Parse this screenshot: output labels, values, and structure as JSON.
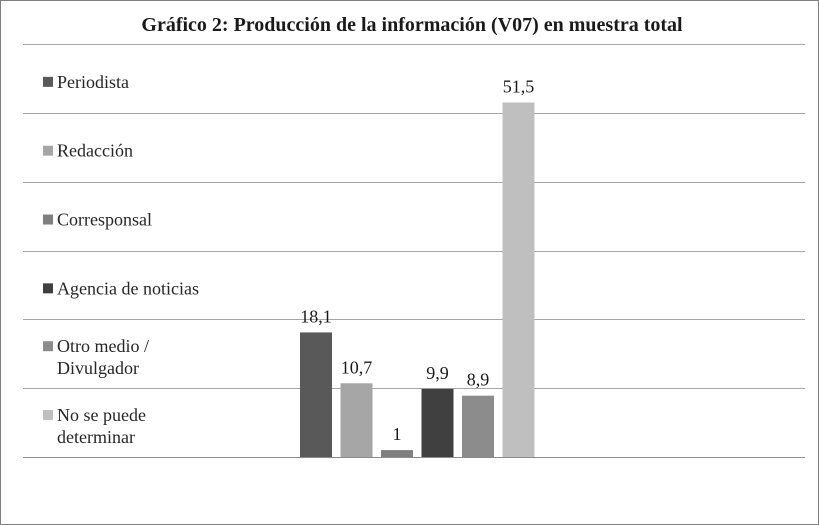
{
  "chart_data": {
    "type": "bar",
    "title": "Gráfico 2: Producción de la información (V07) en muestra total",
    "xlabel": "",
    "ylabel": "",
    "ylim": [
      0,
      60
    ],
    "grid": true,
    "legend_position": "left",
    "categories": [
      "Periodista",
      "Redacción",
      "Corresponsal",
      "Agencia de noticias",
      "Otro medio / Divulgador",
      "No se puede determinar"
    ],
    "series": [
      {
        "name": "Periodista",
        "value": 18.1,
        "label": "18,1",
        "color": "#595959"
      },
      {
        "name": "Redacción",
        "value": 10.7,
        "label": "10,7",
        "color": "#a6a6a6"
      },
      {
        "name": "Corresponsal",
        "value": 1,
        "label": "1",
        "color": "#7f7f7f"
      },
      {
        "name": "Agencia de noticias",
        "value": 9.9,
        "label": "9,9",
        "color": "#404040"
      },
      {
        "name": "Otro medio / Divulgador",
        "value": 8.9,
        "label": "8,9",
        "color": "#8c8c8c"
      },
      {
        "name": "No se puede determinar",
        "value": 51.5,
        "label": "51,5",
        "color": "#bfbfbf"
      }
    ],
    "legend_lines": [
      [
        "Periodista"
      ],
      [
        "Redacción"
      ],
      [
        "Corresponsal"
      ],
      [
        "Agencia de noticias"
      ],
      [
        "Otro medio /",
        "Divulgador"
      ],
      [
        "No se puede",
        "determinar"
      ]
    ]
  }
}
